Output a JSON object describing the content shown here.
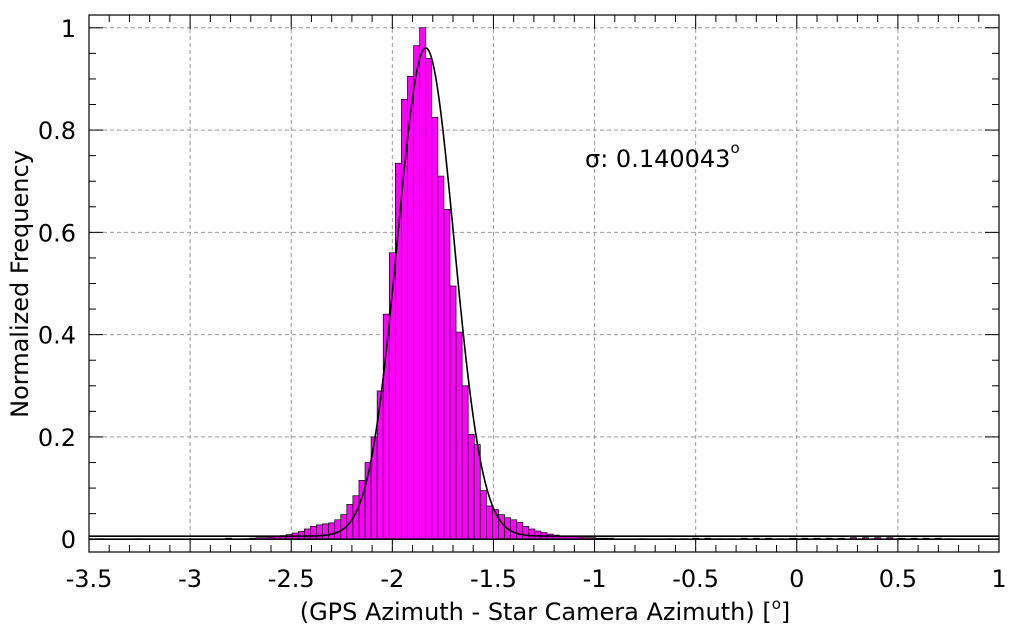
{
  "chart_data": {
    "type": "bar",
    "xlabel": "(GPS Azimuth - Star Camera Azimuth) [",
    "xlabel_sup": "o",
    "xlabel_end": "]",
    "ylabel": "Normalized Frequency",
    "annotation": "σ: 0.140043",
    "annotation_sup": "o",
    "xlim": [
      -3.5,
      1.0
    ],
    "ylim": [
      -0.025,
      1.025
    ],
    "grid": true,
    "x_ticks": [
      -3.5,
      -3.0,
      -2.5,
      -2.0,
      -1.5,
      -1.0,
      -0.5,
      0.0,
      0.5,
      1.0
    ],
    "x_tick_labels": [
      "-3.5",
      "-3",
      "-2.5",
      "-2",
      "-1.5",
      "-1",
      "-0.5",
      "0",
      "0.5",
      "1"
    ],
    "y_ticks": [
      0,
      0.2,
      0.4,
      0.6,
      0.8,
      1.0
    ],
    "y_tick_labels": [
      "0",
      "0.2",
      "0.4",
      "0.6",
      "0.8",
      "1"
    ],
    "bin_width": 0.03,
    "bins": [
      {
        "x": -3.44,
        "y": 0.001
      },
      {
        "x": -3.26,
        "y": 0.001
      },
      {
        "x": -2.81,
        "y": 0.002
      },
      {
        "x": -2.72,
        "y": 0.001
      },
      {
        "x": -2.69,
        "y": 0.002
      },
      {
        "x": -2.66,
        "y": 0.003
      },
      {
        "x": -2.63,
        "y": 0.003
      },
      {
        "x": -2.6,
        "y": 0.004
      },
      {
        "x": -2.57,
        "y": 0.005
      },
      {
        "x": -2.54,
        "y": 0.007
      },
      {
        "x": -2.51,
        "y": 0.009
      },
      {
        "x": -2.48,
        "y": 0.012
      },
      {
        "x": -2.45,
        "y": 0.015
      },
      {
        "x": -2.42,
        "y": 0.02
      },
      {
        "x": -2.39,
        "y": 0.025
      },
      {
        "x": -2.36,
        "y": 0.028
      },
      {
        "x": -2.33,
        "y": 0.03
      },
      {
        "x": -2.3,
        "y": 0.032
      },
      {
        "x": -2.27,
        "y": 0.038
      },
      {
        "x": -2.24,
        "y": 0.048
      },
      {
        "x": -2.21,
        "y": 0.068
      },
      {
        "x": -2.18,
        "y": 0.085
      },
      {
        "x": -2.15,
        "y": 0.115
      },
      {
        "x": -2.12,
        "y": 0.15
      },
      {
        "x": -2.09,
        "y": 0.2
      },
      {
        "x": -2.06,
        "y": 0.29
      },
      {
        "x": -2.03,
        "y": 0.44
      },
      {
        "x": -2.0,
        "y": 0.56
      },
      {
        "x": -1.97,
        "y": 0.735
      },
      {
        "x": -1.94,
        "y": 0.86
      },
      {
        "x": -1.91,
        "y": 0.905
      },
      {
        "x": -1.88,
        "y": 0.965
      },
      {
        "x": -1.85,
        "y": 1.0
      },
      {
        "x": -1.82,
        "y": 0.94
      },
      {
        "x": -1.79,
        "y": 0.825
      },
      {
        "x": -1.76,
        "y": 0.71
      },
      {
        "x": -1.73,
        "y": 0.645
      },
      {
        "x": -1.7,
        "y": 0.495
      },
      {
        "x": -1.67,
        "y": 0.405
      },
      {
        "x": -1.64,
        "y": 0.3
      },
      {
        "x": -1.61,
        "y": 0.205
      },
      {
        "x": -1.58,
        "y": 0.185
      },
      {
        "x": -1.55,
        "y": 0.095
      },
      {
        "x": -1.52,
        "y": 0.065
      },
      {
        "x": -1.49,
        "y": 0.058
      },
      {
        "x": -1.46,
        "y": 0.048
      },
      {
        "x": -1.43,
        "y": 0.042
      },
      {
        "x": -1.4,
        "y": 0.038
      },
      {
        "x": -1.37,
        "y": 0.033
      },
      {
        "x": -1.34,
        "y": 0.025
      },
      {
        "x": -1.31,
        "y": 0.02
      },
      {
        "x": -1.28,
        "y": 0.016
      },
      {
        "x": -1.25,
        "y": 0.013
      },
      {
        "x": -1.22,
        "y": 0.01
      },
      {
        "x": -1.19,
        "y": 0.008
      },
      {
        "x": -1.16,
        "y": 0.006
      },
      {
        "x": -1.13,
        "y": 0.005
      },
      {
        "x": -1.1,
        "y": 0.005
      },
      {
        "x": -1.07,
        "y": 0.004
      },
      {
        "x": -1.04,
        "y": 0.003
      },
      {
        "x": -1.01,
        "y": 0.003
      },
      {
        "x": -0.98,
        "y": 0.002
      },
      {
        "x": -0.95,
        "y": 0.002
      },
      {
        "x": -0.92,
        "y": 0.002
      },
      {
        "x": -0.77,
        "y": 0.001
      },
      {
        "x": -0.62,
        "y": 0.001
      },
      {
        "x": -0.56,
        "y": 0.001
      },
      {
        "x": -0.5,
        "y": 0.002
      },
      {
        "x": -0.44,
        "y": 0.002
      },
      {
        "x": -0.38,
        "y": 0.001
      },
      {
        "x": -0.32,
        "y": 0.001
      },
      {
        "x": -0.26,
        "y": 0.002
      },
      {
        "x": -0.2,
        "y": 0.002
      },
      {
        "x": -0.14,
        "y": 0.002
      },
      {
        "x": -0.08,
        "y": 0.001
      },
      {
        "x": -0.02,
        "y": 0.002
      },
      {
        "x": 0.04,
        "y": 0.002
      },
      {
        "x": 0.1,
        "y": 0.002
      },
      {
        "x": 0.16,
        "y": 0.002
      },
      {
        "x": 0.22,
        "y": 0.002
      },
      {
        "x": 0.28,
        "y": 0.003
      },
      {
        "x": 0.34,
        "y": 0.003
      },
      {
        "x": 0.4,
        "y": 0.003
      },
      {
        "x": 0.46,
        "y": 0.003
      },
      {
        "x": 0.52,
        "y": 0.002
      },
      {
        "x": 0.58,
        "y": 0.002
      },
      {
        "x": 0.64,
        "y": 0.002
      },
      {
        "x": 0.7,
        "y": 0.002
      },
      {
        "x": 0.76,
        "y": 0.001
      }
    ],
    "fit": {
      "type": "gaussian",
      "amplitude": 0.955,
      "mean": -1.835,
      "sigma": 0.140043,
      "offset": 0.006
    },
    "bar_color": "#ff00ff",
    "bar_edge_color": "#000000",
    "fit_color": "#000000",
    "grid_color": "#999999"
  }
}
